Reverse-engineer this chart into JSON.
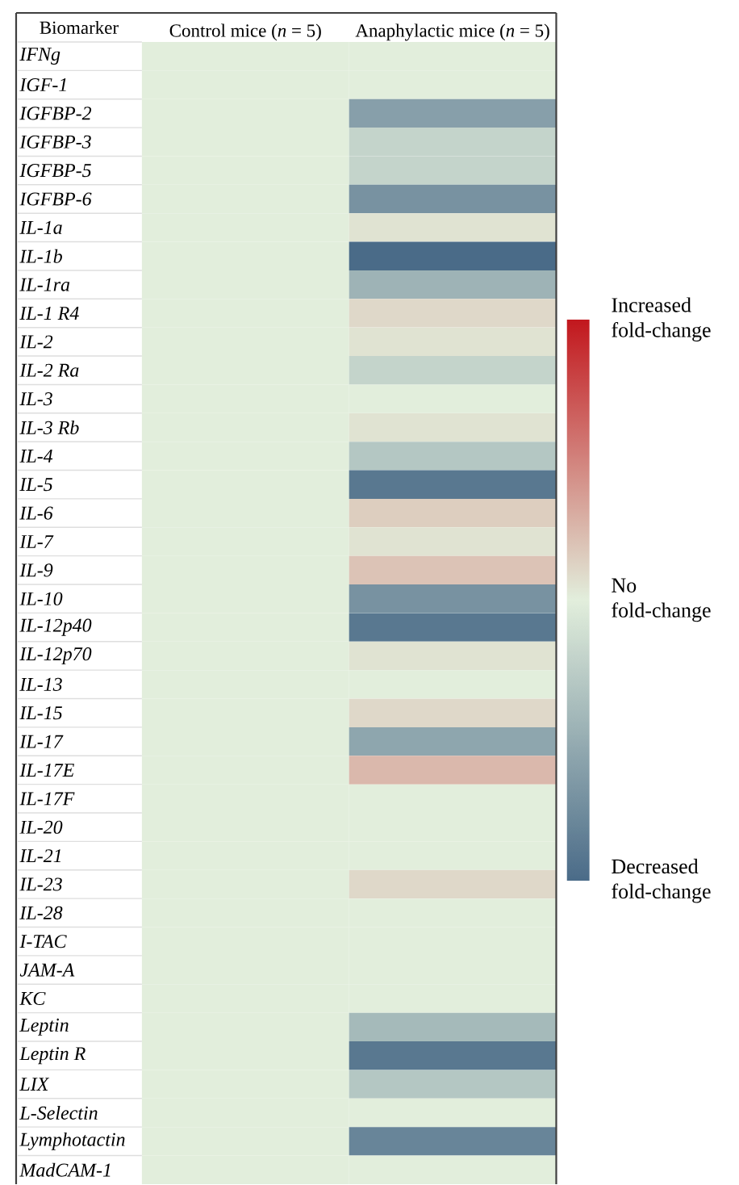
{
  "chart_data": {
    "type": "heatmap",
    "ylabel": "Biomarker",
    "categories": [
      "Control mice (*n* = 5)",
      "Anaphylactic mice (*n* = 5)"
    ],
    "y_categories": [
      "IFNg",
      "IGF-1",
      "IGFBP-2",
      "IGFBP-3",
      "IGFBP-5",
      "IGFBP-6",
      "IL-1a",
      "IL-1b",
      "IL-1ra",
      "IL-1 R4",
      "IL-2",
      "IL-2 Ra",
      "IL-3",
      "IL-3 Rb",
      "IL-4",
      "IL-5",
      "IL-6",
      "IL-7",
      "IL-9",
      "IL-10",
      "IL-12p40",
      "IL-12p70",
      "IL-13",
      "IL-15",
      "IL-17",
      "IL-17E",
      "IL-17F",
      "IL-20",
      "IL-21",
      "IL-23",
      "IL-28",
      "I-TAC",
      "JAM-A",
      "KC",
      "Leptin",
      "Leptin R",
      "LIX",
      "L-Selectin",
      "Lymphotactin",
      "MadCAM-1"
    ],
    "cells": [
      [
        0,
        0
      ],
      [
        0,
        0
      ],
      [
        0,
        -0.6
      ],
      [
        0,
        -0.2
      ],
      [
        0,
        -0.2
      ],
      [
        0,
        -0.7
      ],
      [
        0,
        0.05
      ],
      [
        0,
        -1
      ],
      [
        0,
        -0.45
      ],
      [
        0,
        0.1
      ],
      [
        0,
        0.05
      ],
      [
        0,
        -0.2
      ],
      [
        0,
        0
      ],
      [
        0,
        0.05
      ],
      [
        0,
        -0.3
      ],
      [
        0,
        -0.9
      ],
      [
        0,
        0.15
      ],
      [
        0,
        0.05
      ],
      [
        0,
        0.2
      ],
      [
        0,
        -0.7
      ],
      [
        0,
        -0.9
      ],
      [
        0,
        0.05
      ],
      [
        0,
        0
      ],
      [
        0,
        0.1
      ],
      [
        0,
        -0.55
      ],
      [
        0,
        0.25
      ],
      [
        0,
        0
      ],
      [
        0,
        0
      ],
      [
        0,
        0
      ],
      [
        0,
        0.1
      ],
      [
        0,
        0
      ],
      [
        0,
        0
      ],
      [
        0,
        0
      ],
      [
        0,
        0
      ],
      [
        0,
        -0.4
      ],
      [
        0,
        -0.9
      ],
      [
        0,
        -0.3
      ],
      [
        0,
        0
      ],
      [
        0,
        -0.8
      ],
      [
        0,
        0
      ]
    ],
    "clim": [
      -1,
      1
    ],
    "cticks": [
      {
        "value": -1,
        "label": "Decreased fold-change"
      },
      {
        "value": 0,
        "label": "No fold-change"
      },
      {
        "value": 1,
        "label": "Increased fold-change"
      }
    ]
  }
}
